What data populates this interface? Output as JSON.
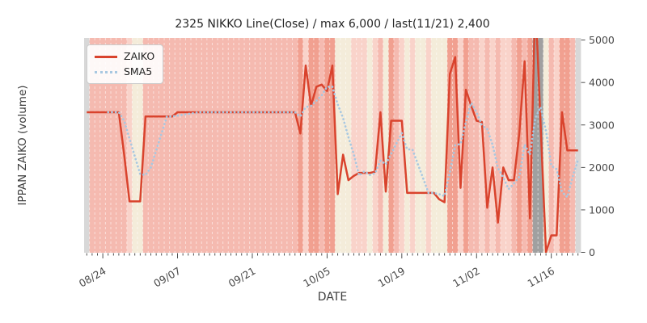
{
  "title": "2325 NIKKO Line(Close) / max 6,000 / last(11/21) 2,400",
  "chart_data": {
    "type": "line",
    "title": "2325 NIKKO Line(Close) / max 6,000 / last(11/21) 2,400",
    "xlabel": "DATE",
    "ylabel": "IPPAN ZAIKO (volume)",
    "ylim": [
      0,
      5000
    ],
    "y_ticks": [
      0,
      1000,
      2000,
      3000,
      4000,
      5000
    ],
    "x_major_ticks": [
      {
        "label": "08/24",
        "index": 3
      },
      {
        "label": "09/07",
        "index": 17
      },
      {
        "label": "09/21",
        "index": 31
      },
      {
        "label": "10/05",
        "index": 45
      },
      {
        "label": "10/19",
        "index": 59
      },
      {
        "label": "11/02",
        "index": 73
      },
      {
        "label": "11/16",
        "index": 87
      }
    ],
    "legend_position": "upper left",
    "grid": "white dashed vertical line per day",
    "max_value": 6000,
    "last_point": {
      "date": "11/21",
      "value": 2400
    },
    "dates": [
      "08/21",
      "08/22",
      "08/23",
      "08/24",
      "08/25",
      "08/26",
      "08/27",
      "08/28",
      "08/29",
      "08/30",
      "08/31",
      "09/01",
      "09/02",
      "09/03",
      "09/04",
      "09/05",
      "09/06",
      "09/07",
      "09/08",
      "09/09",
      "09/10",
      "09/11",
      "09/12",
      "09/13",
      "09/14",
      "09/15",
      "09/16",
      "09/17",
      "09/18",
      "09/19",
      "09/20",
      "09/21",
      "09/22",
      "09/23",
      "09/24",
      "09/25",
      "09/26",
      "09/27",
      "09/28",
      "09/29",
      "09/30",
      "10/01",
      "10/02",
      "10/03",
      "10/04",
      "10/05",
      "10/06",
      "10/07",
      "10/08",
      "10/09",
      "10/10",
      "10/11",
      "10/12",
      "10/13",
      "10/14",
      "10/15",
      "10/16",
      "10/17",
      "10/18",
      "10/19",
      "10/20",
      "10/21",
      "10/22",
      "10/23",
      "10/24",
      "10/25",
      "10/26",
      "10/27",
      "10/28",
      "10/29",
      "10/30",
      "10/31",
      "11/01",
      "11/02",
      "11/03",
      "11/04",
      "11/05",
      "11/06",
      "11/07",
      "11/08",
      "11/09",
      "11/10",
      "11/11",
      "11/12",
      "11/13",
      "11/14",
      "11/15",
      "11/16",
      "11/17",
      "11/18",
      "11/19",
      "11/20",
      "11/21"
    ],
    "series": [
      {
        "name": "ZAIKO",
        "color": "#d9432d",
        "line_style": "solid",
        "values": [
          3300,
          3300,
          3300,
          3300,
          3300,
          3300,
          3300,
          2300,
          1200,
          1200,
          1200,
          3200,
          3200,
          3200,
          3200,
          3200,
          3200,
          3300,
          3300,
          3300,
          3300,
          3300,
          3300,
          3300,
          3300,
          3300,
          3300,
          3300,
          3300,
          3300,
          3300,
          3300,
          3300,
          3300,
          3300,
          3300,
          3300,
          3300,
          3300,
          3300,
          2800,
          4400,
          3450,
          3900,
          3950,
          3800,
          4400,
          1370,
          2300,
          1700,
          1800,
          1870,
          1870,
          1870,
          1900,
          3300,
          1430,
          3100,
          3100,
          3100,
          1400,
          1400,
          1400,
          1400,
          1400,
          1400,
          1250,
          1180,
          4200,
          4600,
          1520,
          3830,
          3450,
          3100,
          3070,
          1050,
          2000,
          700,
          2000,
          1700,
          1700,
          2800,
          4500,
          800,
          6000,
          3000,
          0,
          400,
          400,
          3300,
          2400,
          2400,
          2400
        ]
      },
      {
        "name": "SMA5",
        "color": "#a8c8e1",
        "line_style": "dotted",
        "derivation": "5-day simple moving average of ZAIKO"
      }
    ],
    "background_bands": {
      "palette": {
        "m": "#f5bab0",
        "s": "#f1a090",
        "l": "#f9d3ca",
        "c": "#f4ecda",
        "gd": "#a0a0a0",
        "gl": "#d8d8d8"
      },
      "day_colors": [
        "gl",
        "m",
        "m",
        "m",
        "m",
        "m",
        "m",
        "m",
        "l",
        "c",
        "c",
        "m",
        "m",
        "m",
        "m",
        "m",
        "m",
        "m",
        "m",
        "m",
        "m",
        "m",
        "m",
        "m",
        "m",
        "m",
        "m",
        "m",
        "m",
        "m",
        "m",
        "m",
        "m",
        "m",
        "m",
        "m",
        "m",
        "m",
        "m",
        "m",
        "s",
        "l",
        "s",
        "s",
        "m",
        "s",
        "s",
        "c",
        "c",
        "c",
        "l",
        "l",
        "l",
        "c",
        "l",
        "m",
        "c",
        "s",
        "m",
        "l",
        "c",
        "l",
        "c",
        "c",
        "l",
        "c",
        "c",
        "c",
        "s",
        "s",
        "l",
        "s",
        "m",
        "m",
        "l",
        "m",
        "l",
        "m",
        "l",
        "l",
        "m",
        "s",
        "m",
        "s",
        "gd",
        "gd",
        "c",
        "m",
        "l",
        "s",
        "s",
        "m",
        "gl"
      ]
    }
  }
}
